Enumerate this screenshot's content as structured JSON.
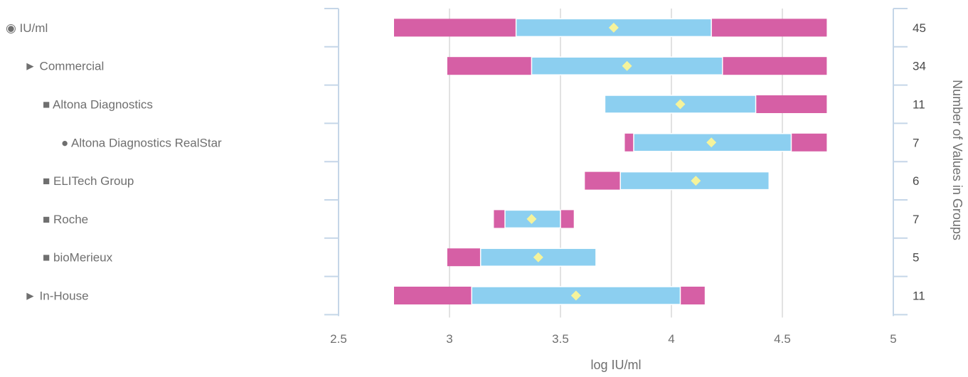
{
  "chart_data": {
    "type": "bar",
    "subtype": "horizontal-range-box",
    "xlabel": "log IU/ml",
    "y2label": "Number of Values in Groups",
    "xlim": [
      2.5,
      5
    ],
    "x_ticks": [
      "2.5",
      "3",
      "3.5",
      "4",
      "4.5",
      "5"
    ],
    "x_tick_values": [
      2.5,
      3,
      3.5,
      4,
      4.5,
      5
    ],
    "grid": "vertical",
    "colors": {
      "outer": "#d65fa5",
      "inner": "#8ccff0",
      "mean": "#f5f39b",
      "grid": "#d9d9d9",
      "axis": "#c5d6e8"
    },
    "series": [
      {
        "name": "",
        "description": "outer range (min–max)"
      },
      {
        "name": "",
        "description": "inner range"
      },
      {
        "name": "",
        "description": "mean marker"
      }
    ],
    "rows": [
      {
        "label": "◉ IU/ml",
        "indent": 0,
        "min": 2.75,
        "q1": 3.3,
        "q3": 4.18,
        "max": 4.7,
        "mean": 3.74,
        "count": "45"
      },
      {
        "label": "► Commercial",
        "indent": 1,
        "min": 2.99,
        "q1": 3.37,
        "q3": 4.23,
        "max": 4.7,
        "mean": 3.8,
        "count": "34"
      },
      {
        "label": "■ Altona Diagnostics",
        "indent": 2,
        "min": 3.7,
        "q1": 3.7,
        "q3": 4.38,
        "max": 4.7,
        "mean": 4.04,
        "count": "11"
      },
      {
        "label": "● Altona Diagnostics RealStar",
        "indent": 3,
        "min": 3.79,
        "q1": 3.83,
        "q3": 4.54,
        "max": 4.7,
        "mean": 4.18,
        "count": "7"
      },
      {
        "label": "■ ELITech Group",
        "indent": 2,
        "min": 3.61,
        "q1": 3.77,
        "q3": 4.44,
        "max": 4.44,
        "mean": 4.11,
        "count": "6"
      },
      {
        "label": "■ Roche",
        "indent": 2,
        "min": 3.2,
        "q1": 3.25,
        "q3": 3.5,
        "max": 3.56,
        "mean": 3.37,
        "count": "7"
      },
      {
        "label": "■ bioMerieux",
        "indent": 2,
        "min": 2.99,
        "q1": 3.14,
        "q3": 3.66,
        "max": 3.66,
        "mean": 3.4,
        "count": "5"
      },
      {
        "label": "► In-House",
        "indent": 1,
        "min": 2.75,
        "q1": 3.1,
        "q3": 4.04,
        "max": 4.15,
        "mean": 3.57,
        "count": "11"
      }
    ]
  }
}
